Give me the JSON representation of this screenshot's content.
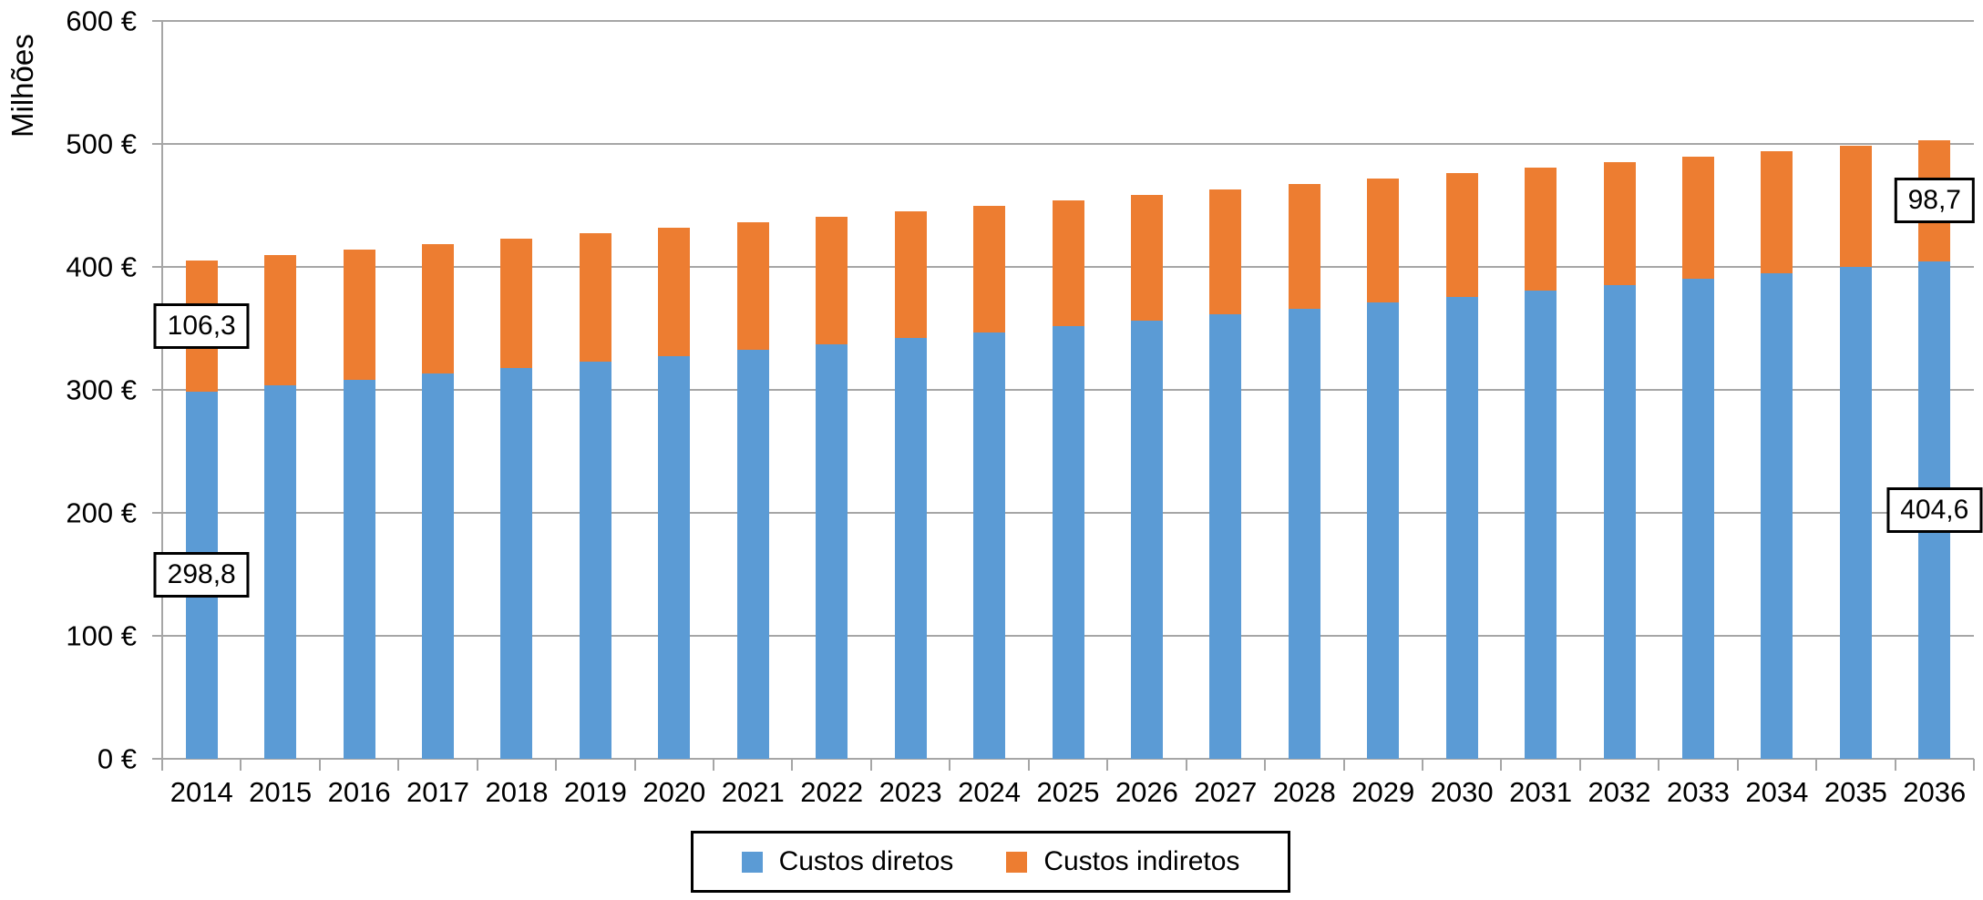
{
  "chart_data": {
    "type": "bar",
    "stacked": true,
    "categories": [
      "2014",
      "2015",
      "2016",
      "2017",
      "2018",
      "2019",
      "2020",
      "2021",
      "2022",
      "2023",
      "2024",
      "2025",
      "2026",
      "2027",
      "2028",
      "2029",
      "2030",
      "2031",
      "2032",
      "2033",
      "2034",
      "2035",
      "2036"
    ],
    "series": [
      {
        "name": "Custos diretos",
        "color": "#5B9BD5",
        "values": [
          298.8,
          303.6,
          308.4,
          313.2,
          318.0,
          322.8,
          327.7,
          332.5,
          337.3,
          342.1,
          346.9,
          351.7,
          356.5,
          361.3,
          366.1,
          370.9,
          375.7,
          380.6,
          385.4,
          390.2,
          395.0,
          399.8,
          404.6
        ]
      },
      {
        "name": "Custos indiretos",
        "color": "#ED7D31",
        "values": [
          106.3,
          106.0,
          105.6,
          105.3,
          104.9,
          104.6,
          104.2,
          103.9,
          103.5,
          103.2,
          102.8,
          102.5,
          102.2,
          101.8,
          101.5,
          101.1,
          100.8,
          100.4,
          100.1,
          99.7,
          99.4,
          99.0,
          98.7
        ]
      }
    ],
    "ylabel": "Milhões",
    "xlabel": "",
    "title": "",
    "ylim": [
      0,
      600
    ],
    "y_step": 100,
    "y_ticks": [
      "0 €",
      "100 €",
      "200 €",
      "300 €",
      "400 €",
      "500 €",
      "600 €"
    ],
    "grid": true,
    "legend_position": "bottom",
    "data_labels": [
      {
        "category": "2014",
        "series": "Custos diretos",
        "text": "298,8"
      },
      {
        "category": "2014",
        "series": "Custos indiretos",
        "text": "106,3"
      },
      {
        "category": "2036",
        "series": "Custos diretos",
        "text": "404,6"
      },
      {
        "category": "2036",
        "series": "Custos indiretos",
        "text": "98,7"
      }
    ],
    "colors": {
      "grid": "#A6A6A6",
      "axis": "#A6A6A6",
      "text": "#000000",
      "background": "#FFFFFF"
    }
  }
}
